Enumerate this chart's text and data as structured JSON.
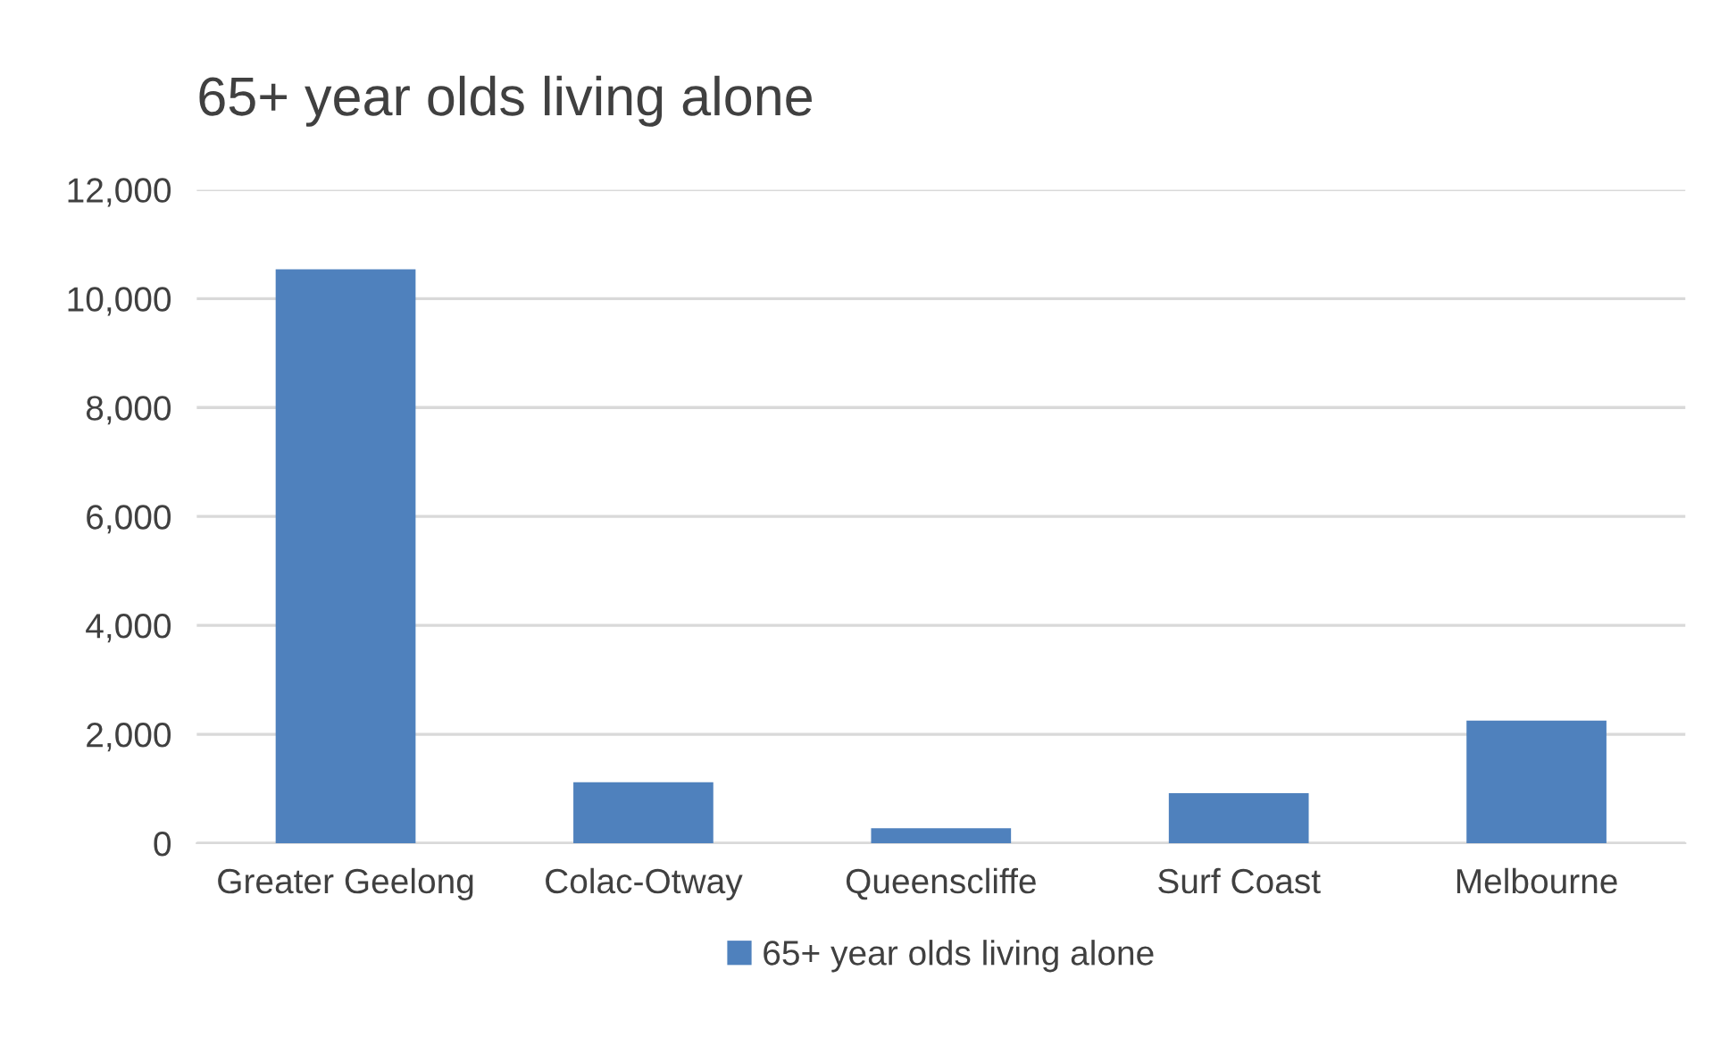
{
  "chart_data": {
    "type": "bar",
    "title": "65+ year olds living alone",
    "categories": [
      "Greater Geelong",
      "Colac-Otway",
      "Queenscliffe",
      "Surf Coast",
      "Melbourne"
    ],
    "series": [
      {
        "name": "65+ year olds living alone",
        "color": "#4f81bd",
        "values": [
          10540,
          1120,
          275,
          920,
          2250
        ]
      }
    ],
    "ylim": [
      0,
      12000
    ],
    "yticks": [
      {
        "value": 0,
        "label": "0"
      },
      {
        "value": 2000,
        "label": "2,000"
      },
      {
        "value": 4000,
        "label": "4,000"
      },
      {
        "value": 6000,
        "label": "6,000"
      },
      {
        "value": 8000,
        "label": "8,000"
      },
      {
        "value": 10000,
        "label": "10,000"
      },
      {
        "value": 12000,
        "label": "12,000"
      }
    ],
    "grid": "y",
    "legend": "bottom"
  }
}
